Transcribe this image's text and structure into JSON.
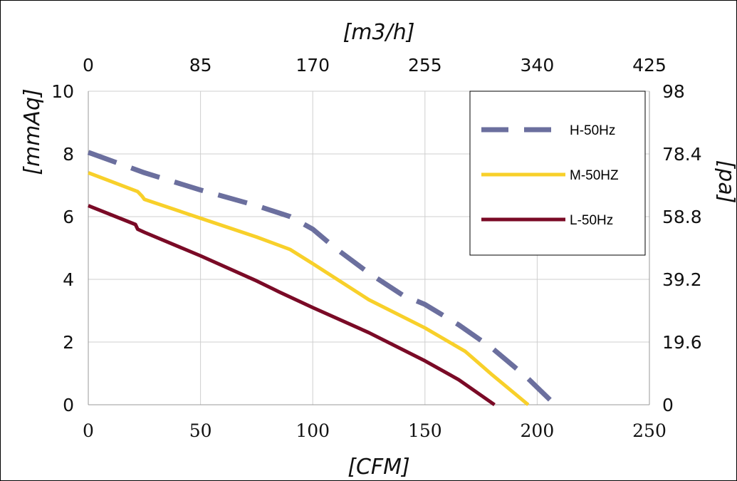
{
  "chart_data": {
    "type": "line",
    "x_bottom_label": "[CFM]",
    "x_top_label": "[m3/h]",
    "y_left_label": "[mmAq]",
    "y_right_label": "[pa]",
    "x_bottom_ticks": [
      "0",
      "50",
      "100",
      "150",
      "200",
      "250"
    ],
    "x_top_ticks": [
      "0",
      "85",
      "170",
      "255",
      "340",
      "425"
    ],
    "y_left_ticks": [
      "0",
      "2",
      "4",
      "6",
      "8",
      "10"
    ],
    "y_right_ticks": [
      "0",
      "19.6",
      "39.2",
      "58.8",
      "78.4",
      "98"
    ],
    "xlim": [
      0,
      250
    ],
    "ylim": [
      0,
      10
    ],
    "grid": true,
    "legend_position": "top-right",
    "series": [
      {
        "name": "H-50Hz",
        "color": "#6b6f9e",
        "style": "dashed",
        "points": [
          [
            0,
            8.05
          ],
          [
            25,
            7.4
          ],
          [
            50,
            6.85
          ],
          [
            75,
            6.35
          ],
          [
            90,
            6.0
          ],
          [
            100,
            5.6
          ],
          [
            110,
            5.0
          ],
          [
            125,
            4.2
          ],
          [
            140,
            3.5
          ],
          [
            150,
            3.2
          ],
          [
            165,
            2.55
          ],
          [
            180,
            1.8
          ],
          [
            195,
            0.9
          ],
          [
            208,
            0
          ]
        ]
      },
      {
        "name": "M-50HZ",
        "color": "#f8d02a",
        "style": "solid",
        "points": [
          [
            0,
            7.4
          ],
          [
            22,
            6.8
          ],
          [
            24,
            6.65
          ],
          [
            25,
            6.55
          ],
          [
            50,
            5.95
          ],
          [
            75,
            5.35
          ],
          [
            90,
            4.95
          ],
          [
            100,
            4.5
          ],
          [
            125,
            3.35
          ],
          [
            150,
            2.45
          ],
          [
            168,
            1.7
          ],
          [
            180,
            0.95
          ],
          [
            196,
            0
          ]
        ]
      },
      {
        "name": "L-50Hz",
        "color": "#7a0a26",
        "style": "solid",
        "points": [
          [
            0,
            6.35
          ],
          [
            21,
            5.75
          ],
          [
            22,
            5.6
          ],
          [
            25,
            5.5
          ],
          [
            50,
            4.75
          ],
          [
            75,
            3.95
          ],
          [
            85,
            3.6
          ],
          [
            100,
            3.1
          ],
          [
            125,
            2.3
          ],
          [
            150,
            1.4
          ],
          [
            165,
            0.8
          ],
          [
            181,
            0
          ]
        ]
      }
    ]
  }
}
